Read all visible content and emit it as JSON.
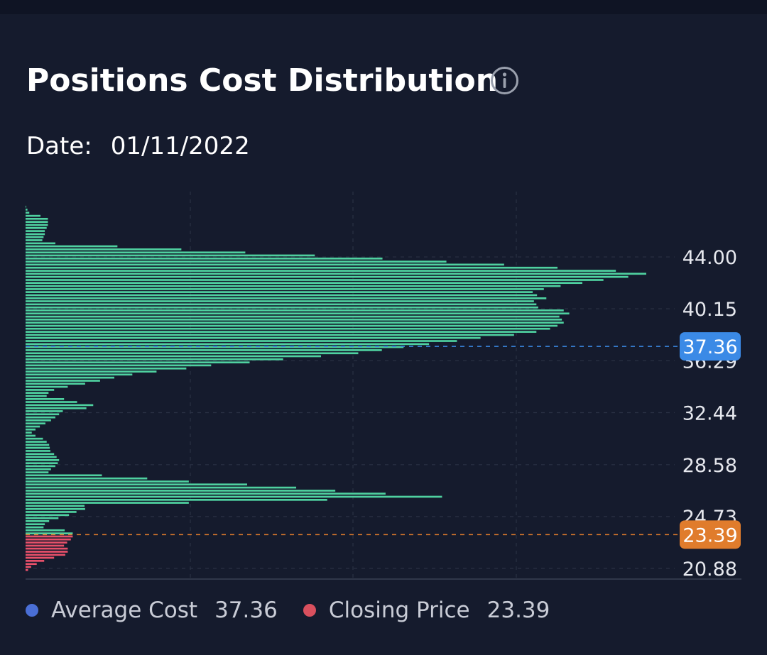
{
  "header": {
    "title": "Positions Cost Distribution",
    "info_icon": "info-circle-icon"
  },
  "date": {
    "label": "Date:",
    "value": "01/11/2022"
  },
  "legend": {
    "average_cost_label": "Average Cost",
    "average_cost_value": "37.36",
    "closing_price_label": "Closing Price",
    "closing_price_value": "23.39"
  },
  "colors": {
    "background": "#151b2d",
    "above_close": "#4fd1a0",
    "below_close": "#e8506a",
    "average_marker": "#3b8ae6",
    "closing_marker": "#e07c2c",
    "average_dot": "#4a6fd6",
    "closing_dot": "#d9505e"
  },
  "chart_data": {
    "type": "bar",
    "orientation": "horizontal",
    "title": "Positions Cost Distribution",
    "y_ticks": [
      44.0,
      40.15,
      36.29,
      32.44,
      28.58,
      24.73,
      20.88
    ],
    "y_tick_labels": [
      "44.00",
      "40.15",
      "36.29",
      "32.44",
      "28.58",
      "24.73",
      "20.88"
    ],
    "ylim": [
      20.3,
      47.9
    ],
    "xlim": [
      0,
      100
    ],
    "average_cost": {
      "value": 37.36,
      "label": "37.36"
    },
    "closing_price": {
      "value": 23.39,
      "label": "23.39"
    },
    "bars": [
      {
        "price": 47.73,
        "value": 0.1
      },
      {
        "price": 47.51,
        "value": 0.3
      },
      {
        "price": 47.28,
        "value": 0.6
      },
      {
        "price": 47.05,
        "value": 2.4
      },
      {
        "price": 46.83,
        "value": 3.6
      },
      {
        "price": 46.6,
        "value": 3.6
      },
      {
        "price": 46.37,
        "value": 3.6
      },
      {
        "price": 46.15,
        "value": 3.4
      },
      {
        "price": 45.92,
        "value": 3.1
      },
      {
        "price": 45.69,
        "value": 3.1
      },
      {
        "price": 45.47,
        "value": 2.9
      },
      {
        "price": 45.24,
        "value": 2.7
      },
      {
        "price": 45.01,
        "value": 4.8
      },
      {
        "price": 44.79,
        "value": 14.8
      },
      {
        "price": 44.56,
        "value": 25.1
      },
      {
        "price": 44.33,
        "value": 35.4
      },
      {
        "price": 44.11,
        "value": 46.6
      },
      {
        "price": 43.88,
        "value": 57.5
      },
      {
        "price": 43.65,
        "value": 67.8
      },
      {
        "price": 43.43,
        "value": 77.1
      },
      {
        "price": 43.2,
        "value": 85.7
      },
      {
        "price": 42.97,
        "value": 95.1
      },
      {
        "price": 42.75,
        "value": 100.0
      },
      {
        "price": 42.52,
        "value": 97.1
      },
      {
        "price": 42.29,
        "value": 93.1
      },
      {
        "price": 42.07,
        "value": 89.7
      },
      {
        "price": 41.84,
        "value": 86.2
      },
      {
        "price": 41.61,
        "value": 83.5
      },
      {
        "price": 41.39,
        "value": 81.7
      },
      {
        "price": 41.16,
        "value": 82.4
      },
      {
        "price": 40.93,
        "value": 83.9
      },
      {
        "price": 40.71,
        "value": 81.9
      },
      {
        "price": 40.48,
        "value": 82.3
      },
      {
        "price": 40.25,
        "value": 82.6
      },
      {
        "price": 40.03,
        "value": 86.7
      },
      {
        "price": 39.8,
        "value": 87.6
      },
      {
        "price": 39.57,
        "value": 86.0
      },
      {
        "price": 39.35,
        "value": 86.4
      },
      {
        "price": 39.12,
        "value": 86.7
      },
      {
        "price": 38.89,
        "value": 85.7
      },
      {
        "price": 38.67,
        "value": 84.5
      },
      {
        "price": 38.44,
        "value": 82.3
      },
      {
        "price": 38.21,
        "value": 78.7
      },
      {
        "price": 37.99,
        "value": 73.3
      },
      {
        "price": 37.76,
        "value": 69.5
      },
      {
        "price": 37.53,
        "value": 65.0
      },
      {
        "price": 37.31,
        "value": 60.9
      },
      {
        "price": 37.08,
        "value": 57.4
      },
      {
        "price": 36.85,
        "value": 53.6
      },
      {
        "price": 36.63,
        "value": 47.6
      },
      {
        "price": 36.4,
        "value": 41.5
      },
      {
        "price": 36.17,
        "value": 36.1
      },
      {
        "price": 35.95,
        "value": 29.9
      },
      {
        "price": 35.72,
        "value": 25.9
      },
      {
        "price": 35.49,
        "value": 21.1
      },
      {
        "price": 35.27,
        "value": 17.2
      },
      {
        "price": 35.04,
        "value": 14.3
      },
      {
        "price": 34.81,
        "value": 12.0
      },
      {
        "price": 34.59,
        "value": 9.6
      },
      {
        "price": 34.36,
        "value": 6.8
      },
      {
        "price": 34.13,
        "value": 4.6
      },
      {
        "price": 33.91,
        "value": 3.7
      },
      {
        "price": 33.68,
        "value": 3.4
      },
      {
        "price": 33.45,
        "value": 6.2
      },
      {
        "price": 33.23,
        "value": 8.3
      },
      {
        "price": 33.0,
        "value": 10.9
      },
      {
        "price": 32.77,
        "value": 9.8
      },
      {
        "price": 32.55,
        "value": 6.0
      },
      {
        "price": 32.32,
        "value": 5.4
      },
      {
        "price": 32.09,
        "value": 4.8
      },
      {
        "price": 31.87,
        "value": 4.1
      },
      {
        "price": 31.64,
        "value": 3.2
      },
      {
        "price": 31.41,
        "value": 2.3
      },
      {
        "price": 31.19,
        "value": 1.6
      },
      {
        "price": 30.96,
        "value": 1.0
      },
      {
        "price": 30.73,
        "value": 1.6
      },
      {
        "price": 30.51,
        "value": 2.8
      },
      {
        "price": 30.28,
        "value": 3.4
      },
      {
        "price": 30.05,
        "value": 3.8
      },
      {
        "price": 29.83,
        "value": 3.9
      },
      {
        "price": 29.6,
        "value": 4.0
      },
      {
        "price": 29.37,
        "value": 4.6
      },
      {
        "price": 29.15,
        "value": 5.0
      },
      {
        "price": 28.92,
        "value": 5.4
      },
      {
        "price": 28.69,
        "value": 5.2
      },
      {
        "price": 28.47,
        "value": 4.8
      },
      {
        "price": 28.24,
        "value": 4.1
      },
      {
        "price": 28.01,
        "value": 3.7
      },
      {
        "price": 27.79,
        "value": 12.3
      },
      {
        "price": 27.56,
        "value": 19.6
      },
      {
        "price": 27.33,
        "value": 26.3
      },
      {
        "price": 27.11,
        "value": 35.7
      },
      {
        "price": 26.88,
        "value": 43.6
      },
      {
        "price": 26.65,
        "value": 49.9
      },
      {
        "price": 26.43,
        "value": 58.0
      },
      {
        "price": 26.2,
        "value": 67.1
      },
      {
        "price": 25.97,
        "value": 48.6
      },
      {
        "price": 25.75,
        "value": 26.3
      },
      {
        "price": 25.52,
        "value": 9.5
      },
      {
        "price": 25.29,
        "value": 9.6
      },
      {
        "price": 25.07,
        "value": 8.2
      },
      {
        "price": 24.84,
        "value": 7.0
      },
      {
        "price": 24.61,
        "value": 5.3
      },
      {
        "price": 24.39,
        "value": 3.8
      },
      {
        "price": 24.16,
        "value": 3.1
      },
      {
        "price": 23.93,
        "value": 2.9
      },
      {
        "price": 23.71,
        "value": 6.3
      },
      {
        "price": 23.48,
        "value": 7.6
      },
      {
        "price": 23.25,
        "value": 7.6
      },
      {
        "price": 23.03,
        "value": 7.3
      },
      {
        "price": 22.8,
        "value": 6.7
      },
      {
        "price": 22.57,
        "value": 6.2
      },
      {
        "price": 22.35,
        "value": 6.8
      },
      {
        "price": 22.12,
        "value": 6.8
      },
      {
        "price": 21.89,
        "value": 6.4
      },
      {
        "price": 21.67,
        "value": 4.6
      },
      {
        "price": 21.44,
        "value": 3.0
      },
      {
        "price": 21.21,
        "value": 1.8
      },
      {
        "price": 20.99,
        "value": 0.9
      },
      {
        "price": 20.76,
        "value": 0.4
      }
    ]
  }
}
